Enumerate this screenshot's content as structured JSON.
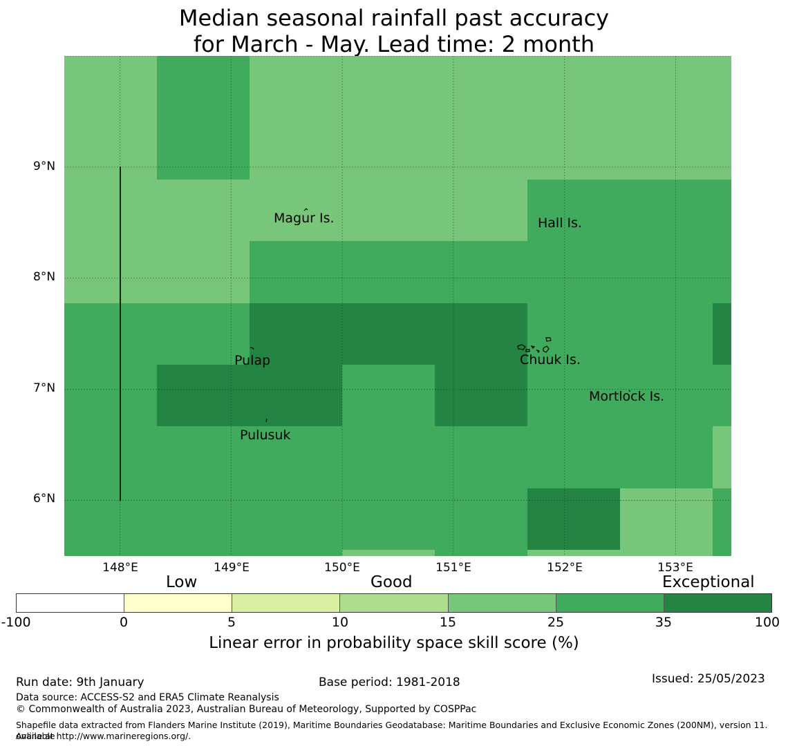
{
  "title": {
    "line1": "Median seasonal rainfall past accuracy",
    "line2": "for March - May. Lead time: 2 month"
  },
  "map": {
    "lon_range": [
      147.5,
      153.5
    ],
    "lat_range": [
      5.5,
      10.0
    ],
    "x_ticks": [
      "148°E",
      "149°E",
      "150°E",
      "151°E",
      "152°E",
      "153°E"
    ],
    "y_ticks": [
      "9°N",
      "8°N",
      "7°N",
      "6°N"
    ],
    "places": [
      "Magur Is.",
      "Hall Is.",
      "Pulap",
      "Chuuk Is.",
      "Mortlock Is.",
      "Pulusuk"
    ],
    "colors": {
      "c15_25": "#78c679",
      "c25_35": "#41ab5d",
      "c35_100": "#238443"
    }
  },
  "legend": {
    "categories": [
      "Low",
      "Good",
      "Exceptional"
    ],
    "ticks": [
      "-100",
      "0",
      "5",
      "10",
      "15",
      "25",
      "35",
      "100"
    ],
    "colors": [
      "#ffffff",
      "#ffffcc",
      "#d9f0a3",
      "#addd8e",
      "#78c679",
      "#41ab5d",
      "#238443"
    ],
    "label": "Linear error in probability space skill score (%)"
  },
  "footer": {
    "run_date": "Run date: 9th January",
    "base_period": "Base period: 1981-2018",
    "issued": "Issued: 25/05/2023",
    "data_source": "Data source: ACCESS-S2 and ERA5 Climate Reanalysis",
    "copyright": "© Commonwealth of Australia 2023, Australian Bureau of Meteorology, Supported by COSPPac",
    "shapefile_line1": "Shapefile data extracted from Flanders Marine Institute (2019), Maritime Boundaries Geodatabase: Maritime Boundaries and Exclusive Economic Zones (200NM), version 11. Available",
    "shapefile_line2": "online at http://www.marineregions.org/."
  }
}
